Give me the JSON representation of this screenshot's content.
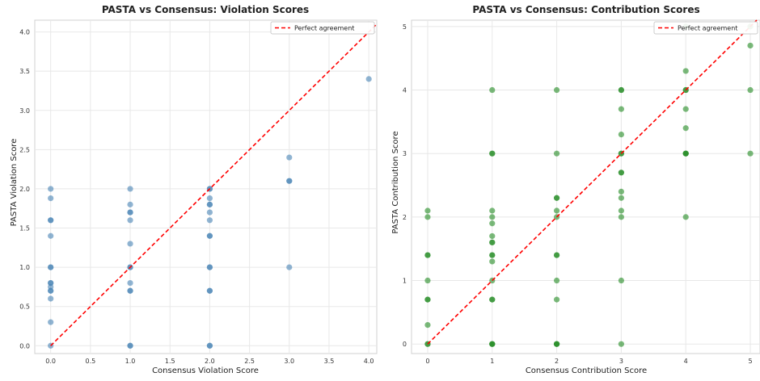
{
  "chart_data": [
    {
      "type": "scatter",
      "title": "PASTA vs Consensus: Violation Scores",
      "xlabel": "Consensus Violation Score",
      "ylabel": "PASTA Violation Score",
      "xlim": [
        -0.2,
        4.1
      ],
      "ylim": [
        -0.1,
        4.15
      ],
      "xticks": [
        "0.0",
        "0.5",
        "1.0",
        "1.5",
        "2.0",
        "2.5",
        "3.0",
        "3.5",
        "4.0"
      ],
      "yticks": [
        "0.0",
        "0.5",
        "1.0",
        "1.5",
        "2.0",
        "2.5",
        "3.0",
        "3.5",
        "4.0"
      ],
      "grid": true,
      "legend": "top-right",
      "point_color": "#4682b4",
      "line_color": "#ff0000",
      "reference_line": {
        "name": "Perfect agreement",
        "x": [
          0,
          4.1
        ],
        "y": [
          0,
          4.1
        ]
      },
      "points": [
        [
          0,
          0
        ],
        [
          0,
          0.3
        ],
        [
          0,
          0.6
        ],
        [
          0,
          0.7
        ],
        [
          0,
          0.7
        ],
        [
          0,
          0.75
        ],
        [
          0,
          0.8
        ],
        [
          0,
          0.8
        ],
        [
          0,
          1.0
        ],
        [
          0,
          1.0
        ],
        [
          0,
          1.4
        ],
        [
          0,
          1.6
        ],
        [
          0,
          1.6
        ],
        [
          0,
          1.88
        ],
        [
          0,
          2.0
        ],
        [
          1,
          0
        ],
        [
          1,
          0
        ],
        [
          1,
          0.7
        ],
        [
          1,
          0.7
        ],
        [
          1,
          0.8
        ],
        [
          1,
          1.0
        ],
        [
          1,
          1.0
        ],
        [
          1,
          1.3
        ],
        [
          1,
          1.6
        ],
        [
          1,
          1.7
        ],
        [
          1,
          1.7
        ],
        [
          1,
          1.8
        ],
        [
          1,
          2.0
        ],
        [
          2,
          0
        ],
        [
          2,
          0
        ],
        [
          2,
          0.7
        ],
        [
          2,
          0.7
        ],
        [
          2,
          1.0
        ],
        [
          2,
          1.0
        ],
        [
          2,
          1.4
        ],
        [
          2,
          1.4
        ],
        [
          2,
          1.6
        ],
        [
          2,
          1.7
        ],
        [
          2,
          1.8
        ],
        [
          2,
          1.8
        ],
        [
          2,
          1.88
        ],
        [
          2,
          2.0
        ],
        [
          2,
          2.0
        ],
        [
          3,
          1.0
        ],
        [
          3,
          2.1
        ],
        [
          3,
          2.1
        ],
        [
          3,
          2.4
        ],
        [
          4,
          3.4
        ]
      ]
    },
    {
      "type": "scatter",
      "title": "PASTA vs Consensus: Contribution Scores",
      "xlabel": "Consensus Contribution Score",
      "ylabel": "PASTA Contribution Score",
      "xlim": [
        -0.25,
        5.15
      ],
      "ylim": [
        -0.15,
        5.1
      ],
      "xticks": [
        "0",
        "1",
        "2",
        "3",
        "4",
        "5"
      ],
      "yticks": [
        "0",
        "1",
        "2",
        "3",
        "4",
        "5"
      ],
      "grid": true,
      "legend": "top-right",
      "point_color": "#228b22",
      "line_color": "#ff0000",
      "reference_line": {
        "name": "Perfect agreement",
        "x": [
          0,
          5.1
        ],
        "y": [
          0,
          5.1
        ]
      },
      "points": [
        [
          0,
          0
        ],
        [
          0,
          0
        ],
        [
          0,
          0.3
        ],
        [
          0,
          0.7
        ],
        [
          0,
          0.7
        ],
        [
          0,
          1.0
        ],
        [
          0,
          1.4
        ],
        [
          0,
          1.4
        ],
        [
          0,
          2.0
        ],
        [
          0,
          2.1
        ],
        [
          1,
          0
        ],
        [
          1,
          0
        ],
        [
          1,
          0
        ],
        [
          1,
          0.7
        ],
        [
          1,
          0.7
        ],
        [
          1,
          1.0
        ],
        [
          1,
          1.3
        ],
        [
          1,
          1.4
        ],
        [
          1,
          1.4
        ],
        [
          1,
          1.6
        ],
        [
          1,
          1.6
        ],
        [
          1,
          1.7
        ],
        [
          1,
          1.9
        ],
        [
          1,
          2.0
        ],
        [
          1,
          2.1
        ],
        [
          1,
          3.0
        ],
        [
          1,
          3.0
        ],
        [
          1,
          4.0
        ],
        [
          2,
          0
        ],
        [
          2,
          0
        ],
        [
          2,
          0
        ],
        [
          2,
          0.7
        ],
        [
          2,
          1.0
        ],
        [
          2,
          1.4
        ],
        [
          2,
          1.4
        ],
        [
          2,
          2.0
        ],
        [
          2,
          2.1
        ],
        [
          2,
          2.3
        ],
        [
          2,
          2.3
        ],
        [
          2,
          3.0
        ],
        [
          2,
          4.0
        ],
        [
          3,
          0
        ],
        [
          3,
          1.0
        ],
        [
          3,
          2.0
        ],
        [
          3,
          2.1
        ],
        [
          3,
          2.3
        ],
        [
          3,
          2.4
        ],
        [
          3,
          2.7
        ],
        [
          3,
          2.7
        ],
        [
          3,
          3.0
        ],
        [
          3,
          3.0
        ],
        [
          3,
          3.3
        ],
        [
          3,
          3.7
        ],
        [
          3,
          4.0
        ],
        [
          3,
          4.0
        ],
        [
          4,
          2.0
        ],
        [
          4,
          3.0
        ],
        [
          4,
          3.0
        ],
        [
          4,
          3.0
        ],
        [
          4,
          3.4
        ],
        [
          4,
          3.7
        ],
        [
          4,
          4.0
        ],
        [
          4,
          4.0
        ],
        [
          4,
          4.3
        ],
        [
          4,
          5.0
        ],
        [
          5,
          3.0
        ],
        [
          5,
          4.0
        ],
        [
          5,
          4.7
        ],
        [
          5,
          5.0
        ]
      ]
    }
  ]
}
